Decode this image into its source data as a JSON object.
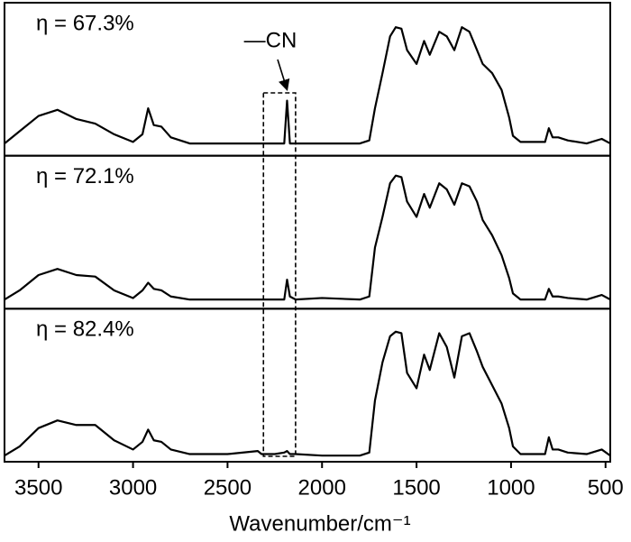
{
  "chart_data": {
    "type": "line",
    "x_label": "Wavenumber/cm⁻¹",
    "annotation": "—CN",
    "highlight_x": [
      2310,
      2140
    ],
    "xlim": [
      3680,
      475
    ],
    "xticks": [
      3500,
      3000,
      2500,
      2000,
      1500,
      1000,
      500
    ],
    "ylim": [
      0,
      100
    ],
    "x": [
      3680,
      3600,
      3500,
      3400,
      3300,
      3200,
      3100,
      3000,
      2950,
      2920,
      2890,
      2850,
      2800,
      2700,
      2500,
      2340,
      2320,
      2250,
      2200,
      2185,
      2170,
      2140,
      2000,
      1800,
      1750,
      1720,
      1680,
      1640,
      1610,
      1580,
      1550,
      1500,
      1460,
      1430,
      1380,
      1340,
      1300,
      1260,
      1220,
      1180,
      1150,
      1100,
      1050,
      1010,
      990,
      950,
      820,
      800,
      780,
      750,
      700,
      600,
      520,
      475
    ],
    "series": [
      {
        "name": "η = 67.3%",
        "color": "#000000",
        "values": [
          8,
          16,
          26,
          30,
          24,
          21,
          14,
          9,
          14,
          31,
          20,
          19,
          12,
          8,
          8,
          8,
          8,
          8,
          8,
          36,
          8,
          8,
          8,
          8,
          10,
          31,
          54,
          78,
          84,
          83,
          69,
          60,
          75,
          66,
          81,
          78,
          69,
          84,
          81,
          69,
          60,
          54,
          43,
          25,
          13,
          9,
          9,
          18,
          12,
          12,
          10,
          8,
          11,
          8
        ]
      },
      {
        "name": "η = 72.1%",
        "color": "#000000",
        "values": [
          6,
          12,
          22,
          26,
          22,
          21,
          12,
          7,
          12,
          17,
          13,
          12,
          8,
          6,
          6,
          6,
          6,
          6,
          6,
          19,
          8,
          6,
          7,
          6,
          8,
          40,
          60,
          82,
          87,
          86,
          70,
          60,
          75,
          66,
          82,
          78,
          68,
          82,
          80,
          70,
          58,
          48,
          35,
          20,
          10,
          6,
          6,
          13,
          8,
          8,
          7,
          6,
          9,
          6
        ]
      },
      {
        "name": "η = 82.4%",
        "color": "#000000",
        "values": [
          4,
          10,
          22,
          27,
          24,
          24,
          14,
          8,
          13,
          21,
          14,
          13,
          8,
          5,
          5,
          7,
          5,
          5,
          6,
          7,
          5,
          5,
          4,
          4,
          6,
          40,
          65,
          82,
          85,
          84,
          58,
          48,
          70,
          60,
          84,
          75,
          55,
          82,
          84,
          72,
          62,
          50,
          38,
          22,
          10,
          5,
          5,
          16,
          8,
          8,
          6,
          5,
          8,
          4
        ]
      }
    ]
  }
}
